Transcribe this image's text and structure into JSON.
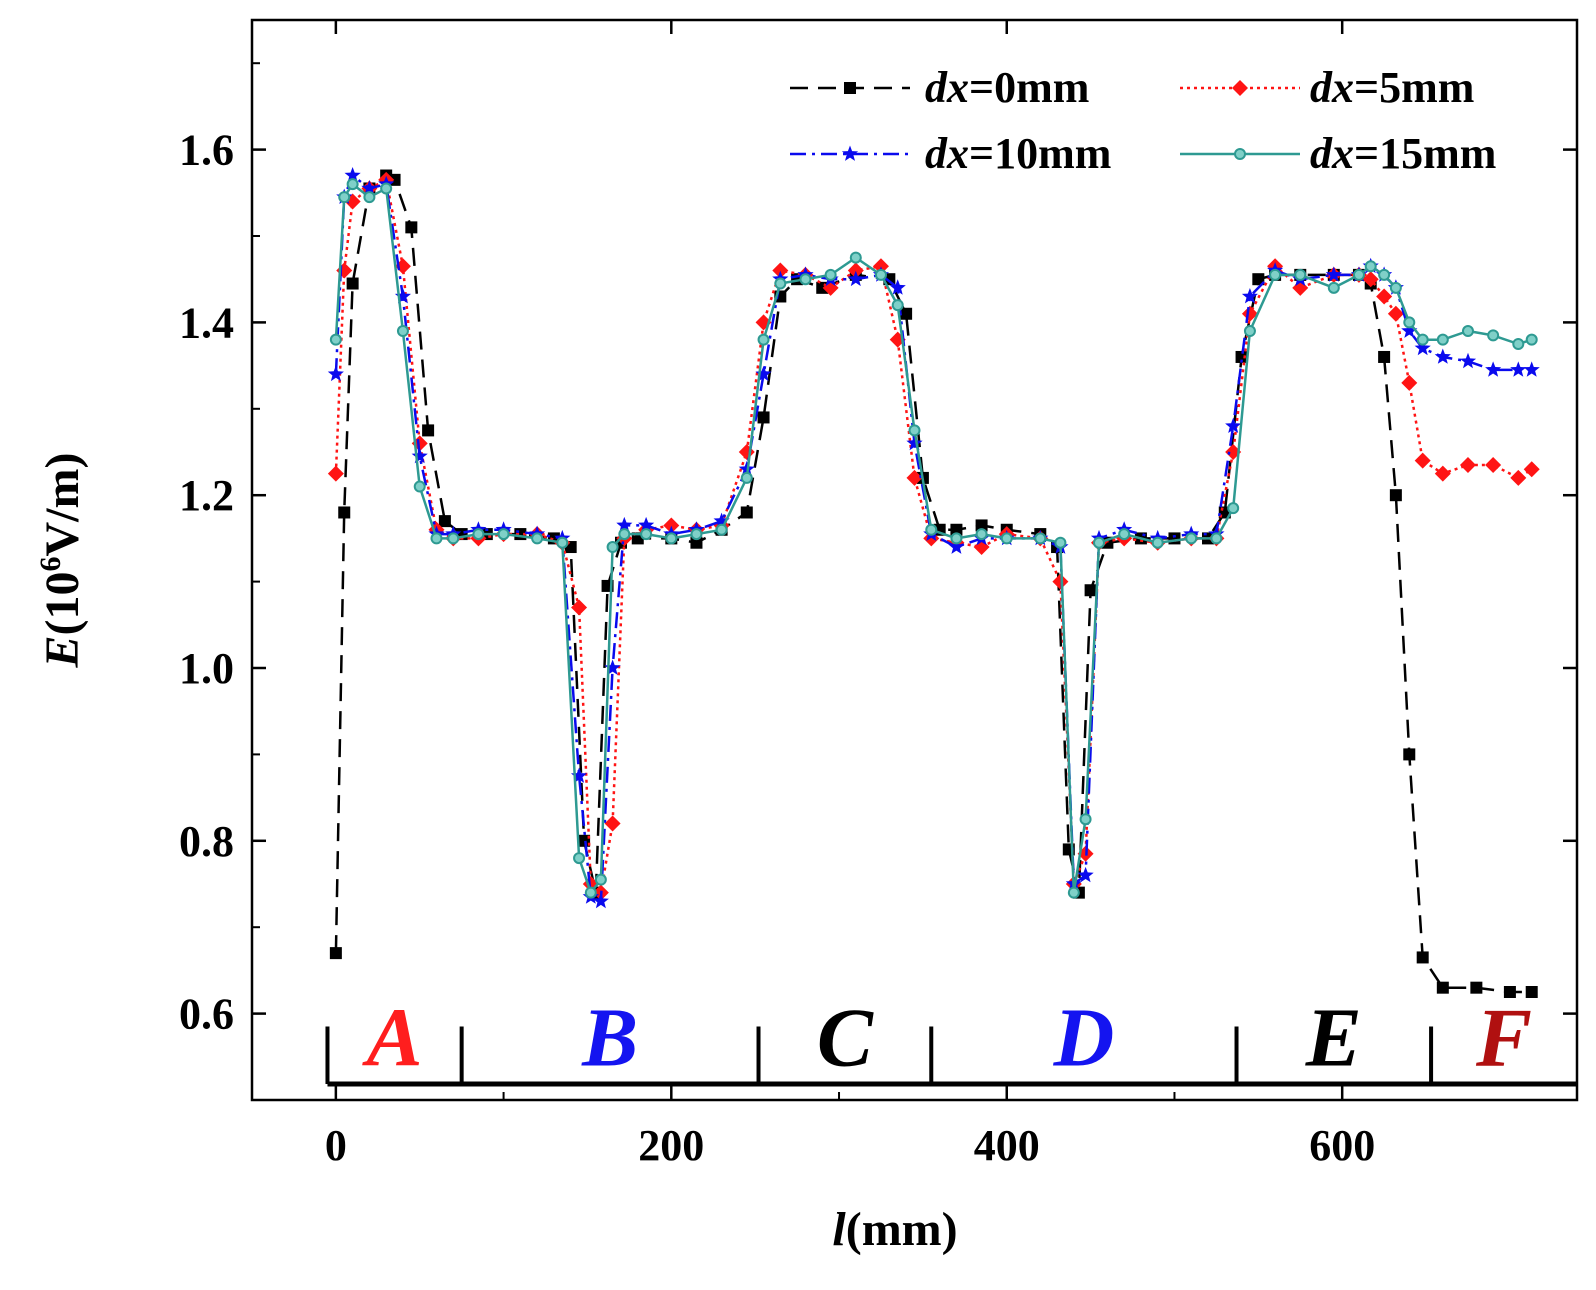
{
  "chart_data": {
    "type": "line",
    "title": "",
    "xlabel": {
      "italic": "l",
      "rest": "(mm)"
    },
    "ylabel": {
      "italic": "E",
      "base": "(10",
      "sup": "6",
      "rest": "V/m)"
    },
    "xlim": [
      -50,
      740
    ],
    "ylim": [
      0.5,
      1.75
    ],
    "xticks": [
      0,
      200,
      400,
      600
    ],
    "yticks": [
      0.6,
      0.8,
      1.0,
      1.2,
      1.4,
      1.6
    ],
    "ytick_labels": [
      "0.6",
      "0.8",
      "1.0",
      "1.2",
      "1.4",
      "1.6"
    ],
    "legend_position": "top-right",
    "series": [
      {
        "name": "dx=0mm",
        "legend_italic": "dx",
        "legend_rest": "=0mm",
        "color": "#000000",
        "dash": "18,10",
        "marker": "square",
        "x": [
          0,
          5,
          10,
          20,
          30,
          35,
          45,
          55,
          65,
          75,
          90,
          110,
          130,
          140,
          148,
          155,
          162,
          170,
          180,
          200,
          215,
          230,
          245,
          255,
          265,
          275,
          290,
          310,
          330,
          340,
          350,
          360,
          370,
          385,
          400,
          420,
          430,
          437,
          443,
          450,
          460,
          480,
          500,
          520,
          530,
          540,
          550,
          560,
          575,
          595,
          610,
          617,
          625,
          632,
          640,
          648,
          660,
          680,
          700,
          713
        ],
        "y": [
          0.67,
          1.18,
          1.445,
          1.555,
          1.57,
          1.565,
          1.51,
          1.275,
          1.17,
          1.155,
          1.155,
          1.155,
          1.15,
          1.14,
          0.8,
          0.74,
          1.095,
          1.145,
          1.15,
          1.15,
          1.145,
          1.16,
          1.18,
          1.29,
          1.43,
          1.45,
          1.44,
          1.455,
          1.45,
          1.41,
          1.22,
          1.16,
          1.16,
          1.165,
          1.16,
          1.155,
          1.14,
          0.79,
          0.74,
          1.09,
          1.145,
          1.15,
          1.15,
          1.15,
          1.18,
          1.36,
          1.45,
          1.455,
          1.455,
          1.455,
          1.455,
          1.445,
          1.36,
          1.2,
          0.9,
          0.665,
          0.63,
          0.63,
          0.625,
          0.625
        ]
      },
      {
        "name": "dx=5mm",
        "legend_italic": "dx",
        "legend_rest": "=5mm",
        "color": "#ff1414",
        "dash": "3,4",
        "marker": "diamond",
        "x": [
          0,
          5,
          10,
          20,
          30,
          40,
          50,
          60,
          70,
          85,
          100,
          120,
          135,
          145,
          152,
          158,
          165,
          172,
          185,
          200,
          215,
          230,
          245,
          255,
          265,
          280,
          295,
          310,
          325,
          335,
          345,
          355,
          370,
          385,
          400,
          420,
          432,
          440,
          447,
          455,
          470,
          490,
          510,
          525,
          535,
          545,
          560,
          575,
          595,
          610,
          617,
          625,
          632,
          640,
          648,
          660,
          675,
          690,
          705,
          713
        ],
        "y": [
          1.225,
          1.46,
          1.54,
          1.555,
          1.565,
          1.465,
          1.26,
          1.16,
          1.15,
          1.15,
          1.155,
          1.155,
          1.145,
          1.07,
          0.75,
          0.74,
          0.82,
          1.15,
          1.16,
          1.165,
          1.16,
          1.165,
          1.25,
          1.4,
          1.46,
          1.455,
          1.44,
          1.46,
          1.465,
          1.38,
          1.22,
          1.15,
          1.145,
          1.14,
          1.155,
          1.15,
          1.1,
          0.75,
          0.785,
          1.145,
          1.15,
          1.145,
          1.15,
          1.15,
          1.25,
          1.41,
          1.465,
          1.44,
          1.455,
          1.455,
          1.45,
          1.43,
          1.41,
          1.33,
          1.24,
          1.225,
          1.235,
          1.235,
          1.22,
          1.23
        ]
      },
      {
        "name": "dx=10mm",
        "legend_italic": "dx",
        "legend_rest": "=10mm",
        "color": "#0a0aee",
        "dash": "16,6,3,6",
        "marker": "star",
        "x": [
          0,
          5,
          10,
          20,
          30,
          40,
          50,
          60,
          70,
          85,
          100,
          120,
          135,
          145,
          152,
          158,
          165,
          172,
          185,
          200,
          215,
          230,
          245,
          255,
          265,
          280,
          295,
          310,
          325,
          335,
          345,
          355,
          370,
          385,
          400,
          420,
          432,
          440,
          447,
          455,
          470,
          490,
          510,
          525,
          535,
          545,
          560,
          575,
          595,
          610,
          617,
          625,
          632,
          640,
          648,
          660,
          675,
          690,
          705,
          713
        ],
        "y": [
          1.34,
          1.545,
          1.57,
          1.555,
          1.56,
          1.43,
          1.245,
          1.155,
          1.155,
          1.16,
          1.16,
          1.155,
          1.15,
          0.875,
          0.735,
          0.73,
          1.0,
          1.165,
          1.165,
          1.155,
          1.16,
          1.17,
          1.23,
          1.34,
          1.45,
          1.455,
          1.45,
          1.45,
          1.455,
          1.44,
          1.26,
          1.155,
          1.14,
          1.15,
          1.15,
          1.15,
          1.14,
          0.75,
          0.76,
          1.15,
          1.16,
          1.15,
          1.155,
          1.155,
          1.28,
          1.43,
          1.46,
          1.45,
          1.455,
          1.455,
          1.465,
          1.455,
          1.44,
          1.39,
          1.37,
          1.36,
          1.355,
          1.345,
          1.345,
          1.345
        ]
      },
      {
        "name": "dx=15mm",
        "legend_italic": "dx",
        "legend_rest": "=15mm",
        "color": "#2e9a92",
        "dash": "",
        "marker": "circle",
        "x": [
          0,
          5,
          10,
          20,
          30,
          40,
          50,
          60,
          70,
          85,
          100,
          120,
          135,
          145,
          152,
          158,
          165,
          172,
          185,
          200,
          215,
          230,
          245,
          255,
          265,
          280,
          295,
          310,
          325,
          335,
          345,
          355,
          370,
          385,
          400,
          420,
          432,
          440,
          447,
          455,
          470,
          490,
          510,
          525,
          535,
          545,
          560,
          575,
          595,
          610,
          617,
          625,
          632,
          640,
          648,
          660,
          675,
          690,
          705,
          713
        ],
        "y": [
          1.38,
          1.545,
          1.56,
          1.545,
          1.555,
          1.39,
          1.21,
          1.15,
          1.15,
          1.155,
          1.155,
          1.15,
          1.145,
          0.78,
          0.74,
          0.755,
          1.14,
          1.155,
          1.155,
          1.15,
          1.155,
          1.16,
          1.22,
          1.38,
          1.445,
          1.45,
          1.455,
          1.475,
          1.455,
          1.42,
          1.275,
          1.16,
          1.15,
          1.155,
          1.15,
          1.15,
          1.145,
          0.74,
          0.825,
          1.145,
          1.155,
          1.145,
          1.15,
          1.15,
          1.185,
          1.39,
          1.455,
          1.455,
          1.44,
          1.455,
          1.465,
          1.455,
          1.44,
          1.4,
          1.38,
          1.38,
          1.39,
          1.385,
          1.375,
          1.38
        ]
      }
    ],
    "regions": [
      {
        "label": "A",
        "color": "#ff1e1e",
        "start": -5,
        "end": 75
      },
      {
        "label": "B",
        "color": "#1414f0",
        "start": 75,
        "end": 252
      },
      {
        "label": "C",
        "color": "#000000",
        "start": 252,
        "end": 355
      },
      {
        "label": "D",
        "color": "#1414f0",
        "start": 355,
        "end": 537
      },
      {
        "label": "E",
        "color": "#000000",
        "start": 537,
        "end": 653
      },
      {
        "label": "F",
        "color": "#b01010",
        "start": 653,
        "end": 740
      }
    ]
  }
}
